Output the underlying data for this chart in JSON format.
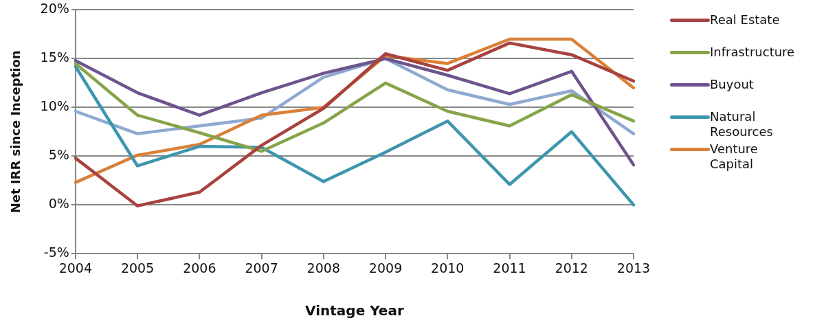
{
  "chart_data": {
    "type": "line",
    "xlabel": "Vintage Year",
    "ylabel": "Net IRR since Inception",
    "categories": [
      "2004",
      "2005",
      "2006",
      "2007",
      "2008",
      "2009",
      "2010",
      "2011",
      "2012",
      "2013"
    ],
    "series": [
      {
        "name": "Real Estate",
        "color": "#a8423f",
        "values": [
          4.8,
          -0.1,
          1.3,
          6.1,
          9.9,
          15.5,
          13.8,
          16.6,
          15.4,
          12.7
        ]
      },
      {
        "name": "Infrastructure",
        "color": "#86a44a",
        "values": [
          14.5,
          9.2,
          7.4,
          5.5,
          8.4,
          12.5,
          9.6,
          8.1,
          11.3,
          8.6
        ]
      },
      {
        "name": "Buyout",
        "color": "#6e548d",
        "values": [
          14.8,
          11.5,
          9.2,
          11.5,
          13.5,
          15.0,
          13.3,
          11.4,
          13.7,
          4.1
        ]
      },
      {
        "name": "Natural Resources",
        "color": "#3d96ae",
        "values": [
          14.2,
          4.0,
          6.0,
          5.9,
          2.4,
          5.4,
          8.6,
          2.1,
          7.5,
          0
        ]
      },
      {
        "name": "Venture Capital",
        "color": "#da8137",
        "values": [
          2.3,
          5.1,
          6.2,
          9.2,
          10.0,
          15.3,
          14.5,
          17.0,
          17.0,
          12.0
        ]
      },
      {
        "color": "#8fa9d1",
        "values": [
          9.6,
          7.3,
          8.1,
          8.9,
          13.1,
          15.0,
          11.8,
          10.3,
          11.7,
          7.3
        ]
      }
    ],
    "ylim": [
      -5,
      20
    ],
    "yticks": [
      {
        "value": -5,
        "label": "-5%"
      },
      {
        "value": 0,
        "label": "0%"
      },
      {
        "value": 5,
        "label": "5%"
      },
      {
        "value": 10,
        "label": "10%"
      },
      {
        "value": 15,
        "label": "15%"
      },
      {
        "value": 20,
        "label": "20%"
      }
    ],
    "grid": "y",
    "legend": "right",
    "marker": "none",
    "line_style": "solid"
  }
}
